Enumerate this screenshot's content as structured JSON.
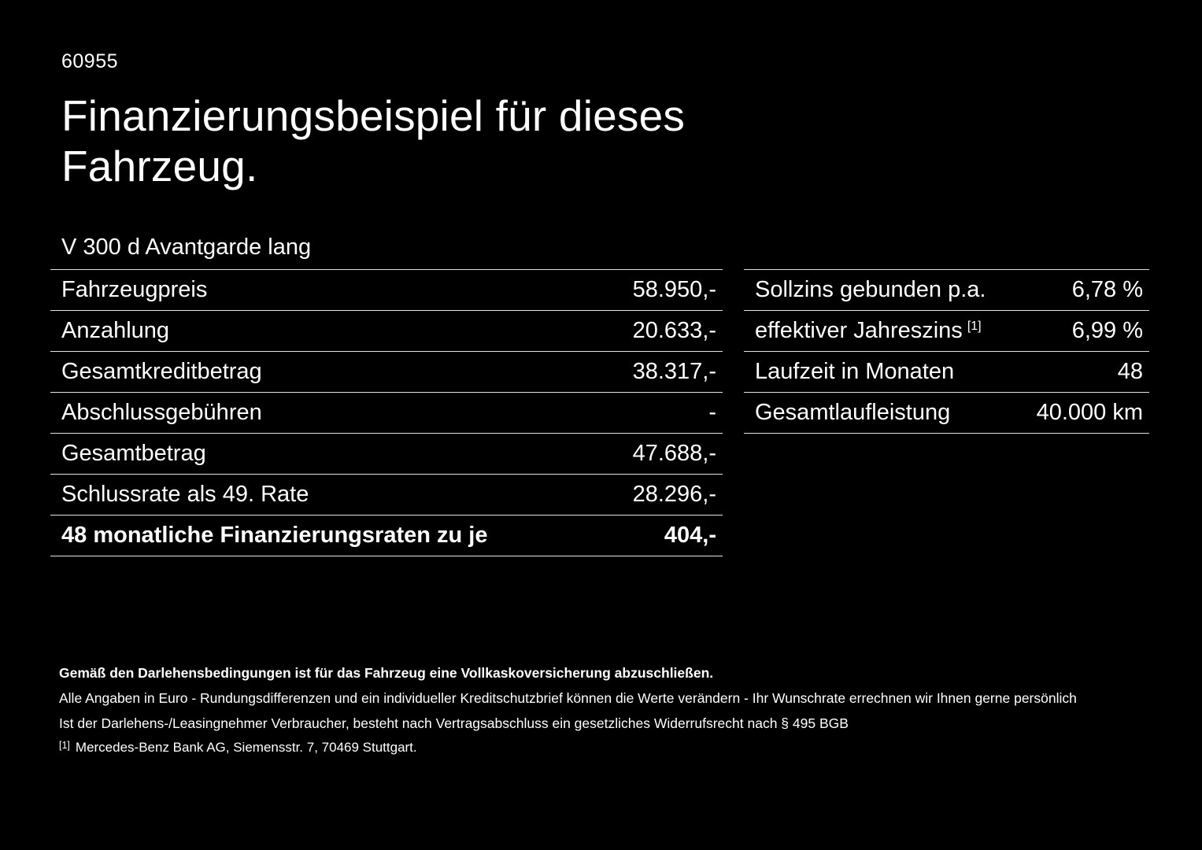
{
  "page": {
    "id_number": "60955",
    "title_line1": "Finanzierungsbeispiel für dieses",
    "title_line2": "Fahrzeug.",
    "vehicle": "V 300 d Avantgarde lang"
  },
  "left_table": {
    "rows": [
      {
        "label": "Fahrzeugpreis",
        "value": "58.950,-"
      },
      {
        "label": "Anzahlung",
        "value": "20.633,-"
      },
      {
        "label": "Gesamtkreditbetrag",
        "value": "38.317,-"
      },
      {
        "label": "Abschlussgebühren",
        "value": "-"
      },
      {
        "label": "Gesamtbetrag",
        "value": "47.688,-"
      },
      {
        "label": "Schlussrate als 49. Rate",
        "value": "28.296,-"
      },
      {
        "label": "48 monatliche Finanzierungsraten zu je",
        "value": "404,-"
      }
    ]
  },
  "right_table": {
    "rows": [
      {
        "label": "Sollzins gebunden p.a.",
        "value": "6,78 %"
      },
      {
        "label": "effektiver Jahreszins",
        "sup": "[1]",
        "value": "6,99 %"
      },
      {
        "label": "Laufzeit in Monaten",
        "value": "48"
      },
      {
        "label": "Gesamtlaufleistung",
        "value": "40.000 km"
      }
    ]
  },
  "footer": {
    "bold_note": "Gemäß den Darlehensbedingungen ist für das Fahrzeug eine Vollkaskoversicherung abzuschließen.",
    "note1": "Alle Angaben in Euro - Rundungsdifferenzen und ein individueller Kreditschutzbrief können die Werte verändern - Ihr Wunschrate errechnen wir Ihnen gerne persönlich",
    "note2": "Ist der Darlehens-/Leasingnehmer Verbraucher, besteht nach Vertragsabschluss ein gesetzliches Widerrufsrecht nach § 495 BGB",
    "footnote_marker": "[1]",
    "footnote_text": "Mercedes-Benz Bank AG, Siemensstr. 7, 70469 Stuttgart."
  },
  "colors": {
    "background": "#000000",
    "text": "#ffffff",
    "divider": "#e2e2e2"
  }
}
